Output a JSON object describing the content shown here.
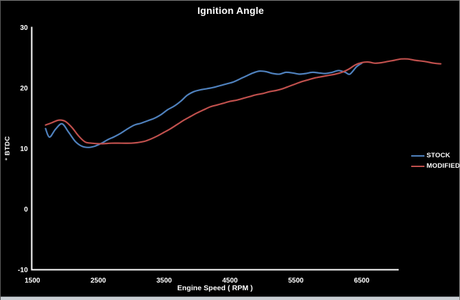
{
  "chart_data": {
    "type": "line",
    "title": "Ignition Angle",
    "xlabel": "Engine Speed ( RPM )",
    "ylabel": "° BTDC",
    "x_ticks": [
      1500,
      2500,
      3500,
      4500,
      5500,
      6500
    ],
    "y_ticks": [
      30,
      20,
      10,
      0,
      -10
    ],
    "xlim": [
      1500,
      7060
    ],
    "ylim": [
      -10,
      30
    ],
    "grid": false,
    "background": "#000000",
    "axis_color": "#ffffff",
    "text_color": "#ffffff",
    "legend_position": "right-middle",
    "series": [
      {
        "name": "STOCK",
        "color": "#4f81bd",
        "points": [
          [
            1700,
            13.3
          ],
          [
            1760,
            11.9
          ],
          [
            1850,
            13.2
          ],
          [
            1950,
            14.1
          ],
          [
            2050,
            12.7
          ],
          [
            2150,
            11.2
          ],
          [
            2250,
            10.4
          ],
          [
            2350,
            10.2
          ],
          [
            2450,
            10.4
          ],
          [
            2550,
            10.9
          ],
          [
            2650,
            11.5
          ],
          [
            2750,
            12.0
          ],
          [
            2850,
            12.6
          ],
          [
            2950,
            13.3
          ],
          [
            3050,
            13.9
          ],
          [
            3150,
            14.2
          ],
          [
            3250,
            14.6
          ],
          [
            3350,
            15.0
          ],
          [
            3450,
            15.6
          ],
          [
            3550,
            16.4
          ],
          [
            3650,
            17.0
          ],
          [
            3750,
            17.8
          ],
          [
            3850,
            18.8
          ],
          [
            3950,
            19.4
          ],
          [
            4050,
            19.7
          ],
          [
            4150,
            19.9
          ],
          [
            4250,
            20.1
          ],
          [
            4350,
            20.4
          ],
          [
            4450,
            20.7
          ],
          [
            4550,
            21.0
          ],
          [
            4650,
            21.5
          ],
          [
            4750,
            22.0
          ],
          [
            4850,
            22.5
          ],
          [
            4950,
            22.8
          ],
          [
            5050,
            22.7
          ],
          [
            5150,
            22.4
          ],
          [
            5250,
            22.3
          ],
          [
            5350,
            22.6
          ],
          [
            5450,
            22.5
          ],
          [
            5550,
            22.3
          ],
          [
            5650,
            22.4
          ],
          [
            5750,
            22.6
          ],
          [
            5850,
            22.5
          ],
          [
            5950,
            22.4
          ],
          [
            6050,
            22.6
          ],
          [
            6150,
            22.9
          ],
          [
            6250,
            22.6
          ],
          [
            6320,
            22.3
          ],
          [
            6420,
            23.5
          ],
          [
            6500,
            24.1
          ]
        ]
      },
      {
        "name": "MODIFIED",
        "color": "#c0504d",
        "points": [
          [
            1700,
            13.9
          ],
          [
            1800,
            14.3
          ],
          [
            1900,
            14.7
          ],
          [
            2000,
            14.5
          ],
          [
            2100,
            13.5
          ],
          [
            2200,
            12.1
          ],
          [
            2300,
            11.1
          ],
          [
            2400,
            10.9
          ],
          [
            2550,
            10.8
          ],
          [
            2700,
            10.9
          ],
          [
            2850,
            10.9
          ],
          [
            3000,
            10.9
          ],
          [
            3100,
            11.0
          ],
          [
            3200,
            11.2
          ],
          [
            3300,
            11.6
          ],
          [
            3400,
            12.1
          ],
          [
            3500,
            12.7
          ],
          [
            3600,
            13.3
          ],
          [
            3700,
            14.0
          ],
          [
            3800,
            14.7
          ],
          [
            3900,
            15.3
          ],
          [
            4000,
            15.9
          ],
          [
            4100,
            16.4
          ],
          [
            4200,
            16.9
          ],
          [
            4300,
            17.2
          ],
          [
            4400,
            17.5
          ],
          [
            4500,
            17.8
          ],
          [
            4600,
            18.0
          ],
          [
            4700,
            18.3
          ],
          [
            4800,
            18.6
          ],
          [
            4900,
            18.9
          ],
          [
            5000,
            19.1
          ],
          [
            5100,
            19.4
          ],
          [
            5200,
            19.6
          ],
          [
            5300,
            19.9
          ],
          [
            5400,
            20.3
          ],
          [
            5500,
            20.7
          ],
          [
            5600,
            21.1
          ],
          [
            5700,
            21.4
          ],
          [
            5800,
            21.7
          ],
          [
            5900,
            21.9
          ],
          [
            6000,
            22.1
          ],
          [
            6100,
            22.3
          ],
          [
            6200,
            22.6
          ],
          [
            6300,
            23.1
          ],
          [
            6400,
            23.8
          ],
          [
            6500,
            24.2
          ],
          [
            6600,
            24.3
          ],
          [
            6700,
            24.1
          ],
          [
            6800,
            24.2
          ],
          [
            6900,
            24.4
          ],
          [
            7000,
            24.6
          ],
          [
            7100,
            24.8
          ],
          [
            7200,
            24.8
          ],
          [
            7300,
            24.6
          ],
          [
            7450,
            24.4
          ],
          [
            7600,
            24.1
          ],
          [
            7700,
            24.0
          ]
        ]
      }
    ]
  }
}
